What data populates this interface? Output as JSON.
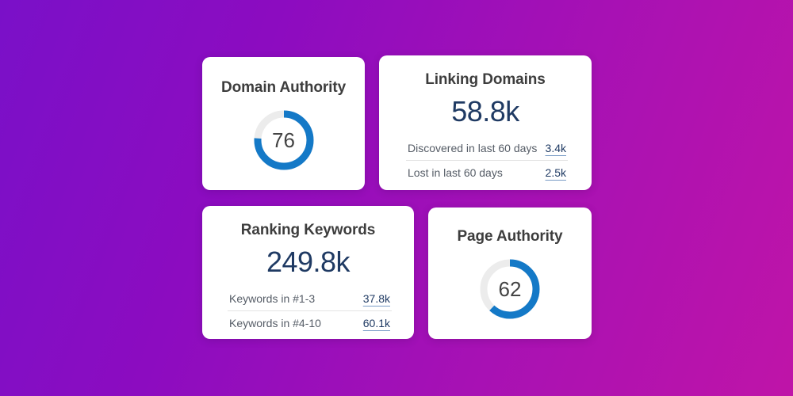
{
  "colors": {
    "accent": "#1479c7",
    "track": "#ececec",
    "number": "#1f3a63"
  },
  "domain_authority": {
    "title": "Domain Authority",
    "value": "76",
    "fraction": 0.76
  },
  "linking_domains": {
    "title": "Linking Domains",
    "total": "58.8k",
    "rows": [
      {
        "label": "Discovered in last 60 days",
        "value": "3.4k"
      },
      {
        "label": "Lost in last 60 days",
        "value": "2.5k"
      }
    ]
  },
  "ranking_keywords": {
    "title": "Ranking Keywords",
    "total": "249.8k",
    "rows": [
      {
        "label": "Keywords in #1-3",
        "value": "37.8k"
      },
      {
        "label": "Keywords in #4-10",
        "value": "60.1k"
      }
    ]
  },
  "page_authority": {
    "title": "Page Authority",
    "value": "62",
    "fraction": 0.62
  }
}
